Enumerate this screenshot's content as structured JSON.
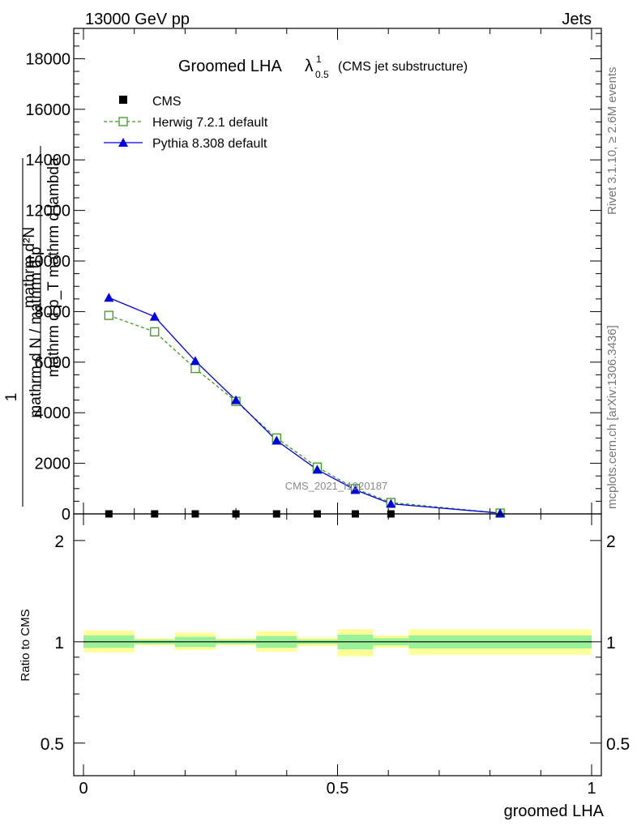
{
  "header": {
    "left": "13000 GeV pp",
    "right": "Jets"
  },
  "side_text": {
    "rivet": "Rivet 3.1.10, ≥ 2.6M events",
    "mcplots": "mcplots.cern.ch [arXiv:1306.3436]"
  },
  "watermark": "CMS_2021_I1920187",
  "colors": {
    "cms": "#000000",
    "herwig": "#3a9a1e",
    "pythia": "#0000e0",
    "band_inner": "#99f299",
    "band_outer": "#ffff99"
  },
  "chart_data": [
    {
      "type": "line",
      "title_main": "Groomed LHA",
      "title_symbol": "λ",
      "title_sup": "1",
      "title_sub": "0.5",
      "title_suffix": "(CMS jet substructure)",
      "ylabel_num": "mathrm d²N",
      "ylabel_den": "mathrm d p_T mathrm d lambda",
      "ylabel_num_sub": "T",
      "ylabel_prefix_num": "1",
      "ylabel_prefix_den": "mathrm d N / mathrm d p",
      "ylabel_prefix_sub": "T",
      "xlim": [
        0,
        1
      ],
      "ylim": [
        0,
        19200
      ],
      "y_ticks": [
        0,
        2000,
        4000,
        6000,
        8000,
        10000,
        12000,
        14000,
        16000,
        18000
      ],
      "y_tick_labels": [
        "0",
        "2000",
        "4000",
        "6000",
        "8000",
        "10000",
        "12000",
        "14000",
        "16000",
        "18000"
      ],
      "legend_position": "top-left",
      "series": [
        {
          "name": "CMS",
          "x": [
            0.05,
            0.14,
            0.22,
            0.3,
            0.38,
            0.46,
            0.535,
            0.605,
            0.82
          ],
          "y": [
            0,
            0,
            0,
            0,
            0,
            0,
            0,
            0,
            0
          ]
        },
        {
          "name": "Herwig 7.2.1 default",
          "x": [
            0.05,
            0.14,
            0.22,
            0.3,
            0.38,
            0.46,
            0.535,
            0.605,
            0.82
          ],
          "y": [
            7850,
            7200,
            5750,
            4450,
            3000,
            1850,
            1000,
            450,
            30
          ]
        },
        {
          "name": "Pythia 8.308 default",
          "x": [
            0.05,
            0.14,
            0.22,
            0.3,
            0.38,
            0.46,
            0.535,
            0.605,
            0.82
          ],
          "y": [
            8550,
            7800,
            6050,
            4500,
            2900,
            1750,
            950,
            400,
            30
          ]
        }
      ]
    },
    {
      "type": "area",
      "ylabel": "Ratio to CMS",
      "xlabel": "groomed LHA",
      "xlim": [
        0,
        1
      ],
      "ylim": [
        0.4,
        2.4
      ],
      "y_scale": "log",
      "y_ticks": [
        0.5,
        1,
        2
      ],
      "y_tick_labels": [
        "0.5",
        "1",
        "2"
      ],
      "x_ticks": [
        0,
        0.5,
        1
      ],
      "x_tick_labels": [
        "0",
        "0.5",
        "1"
      ],
      "reference": 1,
      "bins": [
        {
          "x0": 0.0,
          "x1": 0.1,
          "inner": [
            0.96,
            1.045
          ],
          "outer": [
            0.93,
            1.08
          ]
        },
        {
          "x0": 0.1,
          "x1": 0.18,
          "inner": [
            0.985,
            1.015
          ],
          "outer": [
            0.975,
            1.025
          ]
        },
        {
          "x0": 0.18,
          "x1": 0.26,
          "inner": [
            0.965,
            1.035
          ],
          "outer": [
            0.945,
            1.065
          ]
        },
        {
          "x0": 0.26,
          "x1": 0.34,
          "inner": [
            0.985,
            1.015
          ],
          "outer": [
            0.975,
            1.025
          ]
        },
        {
          "x0": 0.34,
          "x1": 0.42,
          "inner": [
            0.96,
            1.04
          ],
          "outer": [
            0.935,
            1.075
          ]
        },
        {
          "x0": 0.42,
          "x1": 0.5,
          "inner": [
            0.985,
            1.015
          ],
          "outer": [
            0.97,
            1.03
          ]
        },
        {
          "x0": 0.5,
          "x1": 0.57,
          "inner": [
            0.95,
            1.05
          ],
          "outer": [
            0.905,
            1.09
          ]
        },
        {
          "x0": 0.57,
          "x1": 0.64,
          "inner": [
            0.975,
            1.025
          ],
          "outer": [
            0.96,
            1.045
          ]
        },
        {
          "x0": 0.64,
          "x1": 1.0,
          "inner": [
            0.955,
            1.045
          ],
          "outer": [
            0.915,
            1.09
          ]
        }
      ]
    }
  ]
}
